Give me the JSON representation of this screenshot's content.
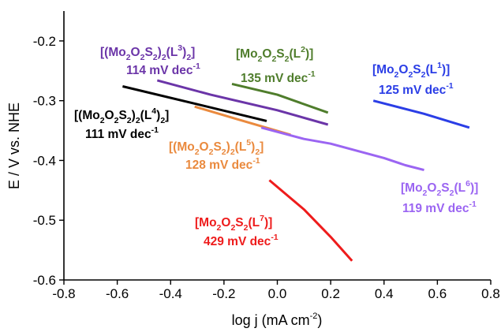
{
  "chart_data": {
    "type": "line",
    "xlabel": "log j (mA cm",
    "xlabel_sup": "-2",
    "xlabel_end": ")",
    "ylabel": "E / V vs. NHE",
    "xlim": [
      -0.8,
      0.8
    ],
    "ylim": [
      -0.6,
      -0.15
    ],
    "xticks": [
      "-0.8",
      "-0.6",
      "-0.4",
      "-0.2",
      "0.0",
      "0.2",
      "0.4",
      "0.6",
      "0.8"
    ],
    "yticks": [
      "-0.6",
      "-0.5",
      "-0.4",
      "-0.3",
      "-0.2"
    ],
    "grid": false,
    "series": [
      {
        "name": "[(Mo2O2S2)2(L3)2]",
        "slope": "114 mV dec-1",
        "color": "#6b35a8",
        "points": [
          [
            -0.45,
            -0.266
          ],
          [
            -0.25,
            -0.29
          ],
          [
            0.0,
            -0.316
          ],
          [
            0.19,
            -0.34
          ]
        ]
      },
      {
        "name": "[Mo2O2S2(L2)]",
        "slope": "135 mV dec-1",
        "color": "#4f7d2c",
        "points": [
          [
            -0.17,
            -0.272
          ],
          [
            0.0,
            -0.29
          ],
          [
            0.19,
            -0.32
          ]
        ]
      },
      {
        "name": "[Mo2O2S2(L1)]",
        "slope": "125 mV dec-1",
        "color": "#2b3ee6",
        "points": [
          [
            0.36,
            -0.3
          ],
          [
            0.55,
            -0.322
          ],
          [
            0.72,
            -0.345
          ]
        ]
      },
      {
        "name": "[(Mo2O2S2)2(L4)2]",
        "slope": "111 mV dec-1",
        "color": "#000000",
        "points": [
          [
            -0.58,
            -0.276
          ],
          [
            -0.3,
            -0.306
          ],
          [
            -0.04,
            -0.334
          ]
        ]
      },
      {
        "name": "[(Mo2O2S2)2(L5)2]",
        "slope": "128 mV dec-1",
        "color": "#ea8a3e",
        "points": [
          [
            -0.31,
            -0.31
          ],
          [
            -0.15,
            -0.331
          ],
          [
            0.05,
            -0.357
          ]
        ]
      },
      {
        "name": "[Mo2O2S2(L6)]",
        "slope": "119 mV dec-1",
        "color": "#9b65f2",
        "points": [
          [
            -0.06,
            -0.345
          ],
          [
            0.1,
            -0.364
          ],
          [
            0.2,
            -0.372
          ],
          [
            0.3,
            -0.384
          ],
          [
            0.4,
            -0.396
          ],
          [
            0.48,
            -0.408
          ],
          [
            0.55,
            -0.416
          ]
        ]
      },
      {
        "name": "[Mo2O2S2(L7)]",
        "slope": "429 mV dec-1",
        "color": "#ee1c1c",
        "points": [
          [
            -0.03,
            -0.433
          ],
          [
            0.1,
            -0.482
          ],
          [
            0.2,
            -0.528
          ],
          [
            0.28,
            -0.568
          ]
        ]
      }
    ],
    "annotations": [
      {
        "id": "L3",
        "segments": [
          [
            "[(Mo",
            ""
          ],
          [
            "2",
            "sub"
          ],
          [
            "O",
            ""
          ],
          [
            "2",
            "sub"
          ],
          [
            "S",
            ""
          ],
          [
            "2",
            "sub"
          ],
          [
            ")",
            ""
          ],
          [
            "2",
            "sub"
          ],
          [
            "(L",
            ""
          ],
          [
            "3",
            "sup"
          ],
          [
            ")",
            ""
          ],
          [
            "2",
            "sub"
          ],
          [
            "]",
            ""
          ]
        ],
        "slope": [
          "114 mV dec",
          "-1"
        ],
        "color": "#6b35a8"
      },
      {
        "id": "L2",
        "segments": [
          [
            "[Mo",
            ""
          ],
          [
            "2",
            "sub"
          ],
          [
            "O",
            ""
          ],
          [
            "2",
            "sub"
          ],
          [
            "S",
            ""
          ],
          [
            "2",
            "sub"
          ],
          [
            "(L",
            ""
          ],
          [
            "2",
            "sup"
          ],
          [
            ")]",
            ""
          ]
        ],
        "slope": [
          "135 mV dec",
          "-1"
        ],
        "color": "#4f7d2c"
      },
      {
        "id": "L1",
        "segments": [
          [
            "[Mo",
            ""
          ],
          [
            "2",
            "sub"
          ],
          [
            "O",
            ""
          ],
          [
            "2",
            "sub"
          ],
          [
            "S",
            ""
          ],
          [
            "2",
            "sub"
          ],
          [
            "(L",
            ""
          ],
          [
            "1",
            "sup"
          ],
          [
            ")]",
            ""
          ]
        ],
        "slope": [
          "125 mV dec",
          "-1"
        ],
        "color": "#2b3ee6"
      },
      {
        "id": "L4",
        "segments": [
          [
            "[(Mo",
            ""
          ],
          [
            "2",
            "sub"
          ],
          [
            "O",
            ""
          ],
          [
            "2",
            "sub"
          ],
          [
            "S",
            ""
          ],
          [
            "2",
            "sub"
          ],
          [
            ")",
            ""
          ],
          [
            "2",
            "sub"
          ],
          [
            "(L",
            ""
          ],
          [
            "4",
            "sup"
          ],
          [
            ")",
            ""
          ],
          [
            "2",
            "sub"
          ],
          [
            "]",
            ""
          ]
        ],
        "slope": [
          "111 mV dec",
          "-1"
        ],
        "color": "#000000"
      },
      {
        "id": "L5",
        "segments": [
          [
            "[(Mo",
            ""
          ],
          [
            "2",
            "sub"
          ],
          [
            "O",
            ""
          ],
          [
            "2",
            "sub"
          ],
          [
            "S",
            ""
          ],
          [
            "2",
            "sub"
          ],
          [
            ")",
            ""
          ],
          [
            "2",
            "sub"
          ],
          [
            "(L",
            ""
          ],
          [
            "5",
            "sup"
          ],
          [
            ")",
            ""
          ],
          [
            "2",
            "sub"
          ],
          [
            "]",
            ""
          ]
        ],
        "slope": [
          "128 mV dec",
          "-1"
        ],
        "color": "#ea8a3e"
      },
      {
        "id": "L6",
        "segments": [
          [
            "[Mo",
            ""
          ],
          [
            "2",
            "sub"
          ],
          [
            "O",
            ""
          ],
          [
            "2",
            "sub"
          ],
          [
            "S",
            ""
          ],
          [
            "2",
            "sub"
          ],
          [
            "(L",
            ""
          ],
          [
            "6",
            "sup"
          ],
          [
            ")]",
            ""
          ]
        ],
        "slope": [
          "119 mV dec",
          "-1"
        ],
        "color": "#9b65f2"
      },
      {
        "id": "L7",
        "segments": [
          [
            "[Mo",
            ""
          ],
          [
            "2",
            "sub"
          ],
          [
            "O",
            ""
          ],
          [
            "2",
            "sub"
          ],
          [
            "S",
            ""
          ],
          [
            "2",
            "sub"
          ],
          [
            "(L",
            ""
          ],
          [
            "7",
            "sup"
          ],
          [
            ")]",
            ""
          ]
        ],
        "slope": [
          "429 mV dec",
          "-1"
        ],
        "color": "#ee1c1c"
      }
    ]
  }
}
